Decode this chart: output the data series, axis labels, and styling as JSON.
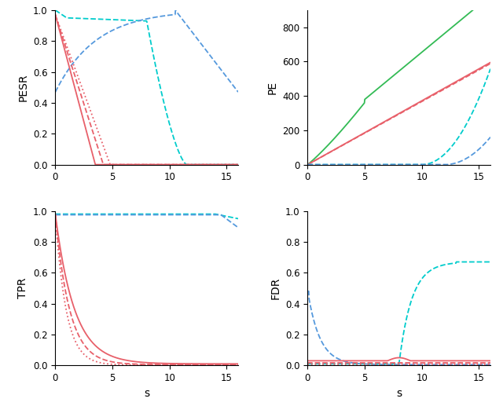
{
  "xlim": [
    0,
    16
  ],
  "pesr_ylim": [
    0,
    1.0
  ],
  "pe_ylim": [
    -20,
    900
  ],
  "tpr_ylim": [
    0,
    1.0
  ],
  "fdr_ylim": [
    0,
    1.0
  ],
  "colors": {
    "red_solid": "#E8606A",
    "red_dashed": "#E8606A",
    "red_dotted": "#E8606A",
    "cyan_dashed": "#00CCCC",
    "blue_dashed": "#5599DD",
    "green_solid": "#33BB55"
  },
  "background": "#FFFFFF",
  "axis_label_fontsize": 10,
  "tick_fontsize": 8.5
}
